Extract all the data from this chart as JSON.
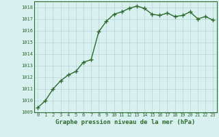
{
  "x": [
    0,
    1,
    2,
    3,
    4,
    5,
    6,
    7,
    8,
    9,
    10,
    11,
    12,
    13,
    14,
    15,
    16,
    17,
    18,
    19,
    20,
    21,
    22,
    23
  ],
  "y": [
    1009.4,
    1010.0,
    1011.0,
    1011.7,
    1012.2,
    1012.5,
    1013.3,
    1013.5,
    1015.9,
    1016.8,
    1017.4,
    1017.6,
    1017.9,
    1018.1,
    1017.9,
    1017.4,
    1017.3,
    1017.5,
    1017.2,
    1017.3,
    1017.6,
    1017.0,
    1017.2,
    1016.9
  ],
  "line_color": "#2d6a2d",
  "marker": "+",
  "marker_size": 4,
  "bg_color": "#d8f0f0",
  "grid_color": "#b8d4d4",
  "ylim": [
    1009,
    1018.5
  ],
  "yticks": [
    1009,
    1010,
    1011,
    1012,
    1013,
    1014,
    1015,
    1016,
    1017,
    1018
  ],
  "xlim": [
    -0.5,
    23.5
  ],
  "xticks": [
    0,
    1,
    2,
    3,
    4,
    5,
    6,
    7,
    8,
    9,
    10,
    11,
    12,
    13,
    14,
    15,
    16,
    17,
    18,
    19,
    20,
    21,
    22,
    23
  ],
  "xlabel": "Graphe pression niveau de la mer (hPa)",
  "xlabel_fontsize": 6.5,
  "tick_fontsize": 5.0,
  "line_width": 1.0
}
